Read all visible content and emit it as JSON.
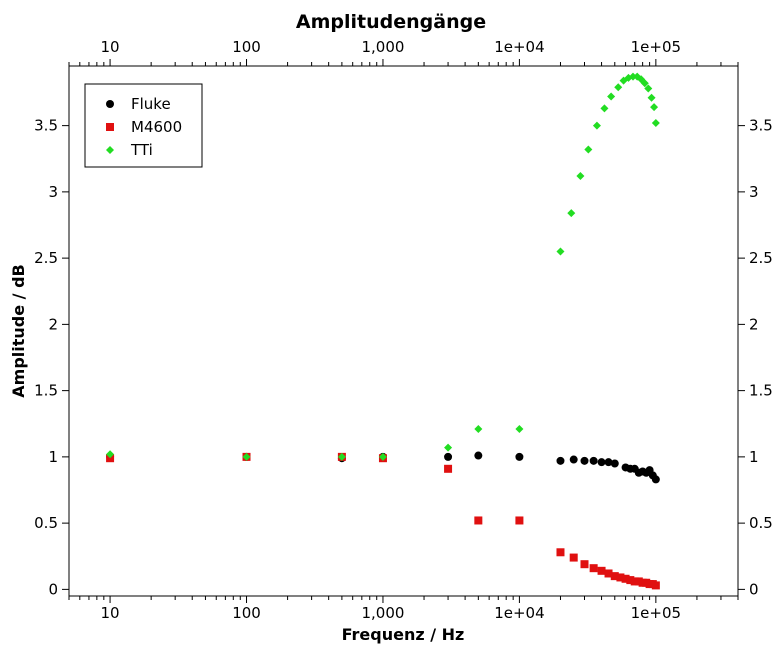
{
  "chart_data": {
    "type": "scatter",
    "title": "Amplitudengänge",
    "xlabel": "Frequenz / Hz",
    "ylabel": "Amplitude / dB",
    "x_scale": "log",
    "xlim": [
      5,
      400000
    ],
    "ylim": [
      -0.05,
      3.95
    ],
    "x_ticks": [
      10,
      100,
      1000,
      10000,
      100000
    ],
    "x_tick_labels": [
      "10",
      "100",
      "1,000",
      "1e+04",
      "1e+05"
    ],
    "y_ticks": [
      0,
      0.5,
      1,
      1.5,
      2,
      2.5,
      3,
      3.5
    ],
    "y_tick_labels": [
      "0",
      "0.5",
      "1",
      "1.5",
      "2",
      "2.5",
      "3",
      "3.5"
    ],
    "grid": false,
    "legend_position": "top-left",
    "series": [
      {
        "name": "Fluke",
        "color": "#000000",
        "marker": "circle",
        "x": [
          10,
          100,
          500,
          1000,
          3000,
          5000,
          10000,
          20000,
          25000,
          30000,
          35000,
          40000,
          45000,
          50000,
          60000,
          65000,
          70000,
          75000,
          80000,
          85000,
          90000,
          95000,
          100000
        ],
        "y": [
          1.0,
          1.0,
          0.99,
          1.0,
          1.0,
          1.01,
          1.0,
          0.97,
          0.98,
          0.97,
          0.97,
          0.96,
          0.96,
          0.95,
          0.92,
          0.91,
          0.91,
          0.88,
          0.89,
          0.88,
          0.9,
          0.86,
          0.83
        ]
      },
      {
        "name": "M4600",
        "color": "#e01010",
        "marker": "square",
        "x": [
          10,
          100,
          500,
          1000,
          3000,
          5000,
          10000,
          20000,
          25000,
          30000,
          35000,
          40000,
          45000,
          50000,
          55000,
          60000,
          65000,
          70000,
          75000,
          80000,
          85000,
          90000,
          95000,
          100000
        ],
        "y": [
          0.99,
          1.0,
          1.0,
          0.99,
          0.91,
          0.52,
          0.52,
          0.28,
          0.24,
          0.19,
          0.16,
          0.14,
          0.12,
          0.1,
          0.09,
          0.08,
          0.07,
          0.06,
          0.06,
          0.05,
          0.05,
          0.04,
          0.04,
          0.03
        ]
      },
      {
        "name": "TTi",
        "color": "#22dd22",
        "marker": "diamond",
        "x": [
          10,
          100,
          500,
          1000,
          3000,
          5000,
          10000,
          20000,
          24000,
          28000,
          32000,
          37000,
          42000,
          47000,
          53000,
          58000,
          63000,
          68000,
          73000,
          78000,
          83000,
          88000,
          93000,
          97000,
          100000
        ],
        "y": [
          1.02,
          1.0,
          1.0,
          1.0,
          1.07,
          1.21,
          1.21,
          2.55,
          2.84,
          3.12,
          3.32,
          3.5,
          3.63,
          3.72,
          3.79,
          3.84,
          3.86,
          3.87,
          3.87,
          3.85,
          3.82,
          3.78,
          3.71,
          3.64,
          3.52
        ]
      }
    ]
  }
}
